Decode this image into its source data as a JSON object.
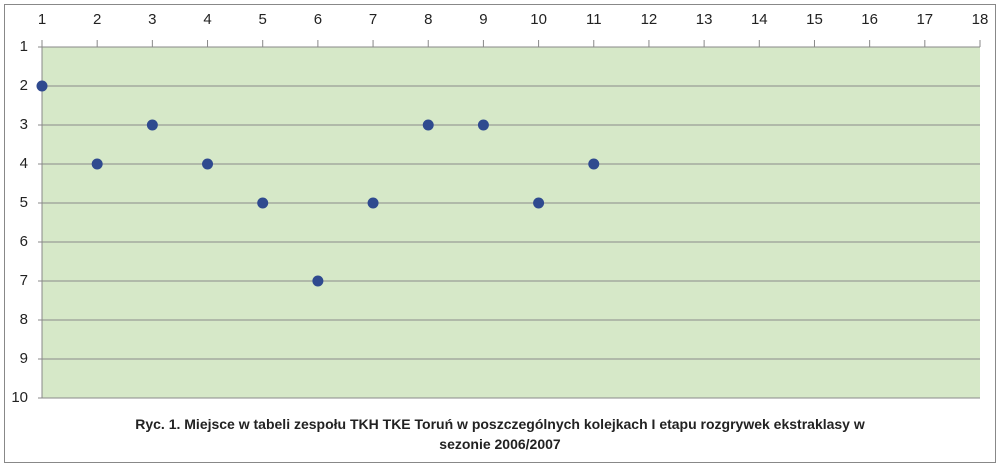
{
  "chart_data": {
    "type": "scatter",
    "title": "Ryc. 1. Miejsce w tabeli zespołu TKH TKE Toruń w poszczególnych kolejkach I etapu rozgrywek ekstraklasy w sezonie 2006/2007",
    "x": [
      1,
      2,
      3,
      4,
      5,
      6,
      7,
      8,
      9,
      10,
      11
    ],
    "values": [
      2,
      4,
      3,
      4,
      5,
      7,
      5,
      3,
      3,
      5,
      4
    ],
    "color": "#2f4a8f",
    "xlim": [
      1,
      18
    ],
    "xticks": [
      1,
      2,
      3,
      4,
      5,
      6,
      7,
      8,
      9,
      10,
      11,
      12,
      13,
      14,
      15,
      16,
      17,
      18
    ],
    "ylim": [
      1,
      10
    ],
    "yticks": [
      1,
      2,
      3,
      4,
      5,
      6,
      7,
      8,
      9,
      10
    ],
    "y_reversed": true,
    "x_axis_position": "top",
    "grid": true,
    "plot_background": "#d6e8c8"
  }
}
